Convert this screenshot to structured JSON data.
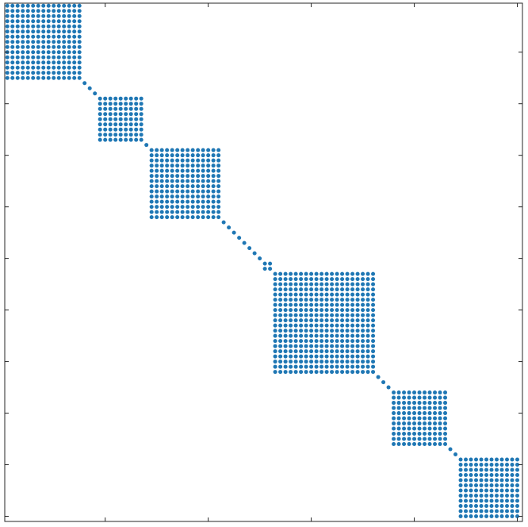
{
  "chart_data": {
    "type": "scatter",
    "title": "",
    "xlabel": "",
    "ylabel": "",
    "xlim": [
      0.5,
      101
    ],
    "ylim": [
      0.5,
      101
    ],
    "y_inverted": true,
    "grid": false,
    "tick_labels_shown": false,
    "xticks": [
      20,
      40,
      60,
      80,
      100
    ],
    "yticks": [
      10,
      20,
      30,
      40,
      50,
      60,
      70,
      80,
      90,
      100
    ],
    "marker_color": "#1f77b4",
    "blocks": [
      {
        "start": 1,
        "end": 15
      },
      {
        "start": 16,
        "end": 16
      },
      {
        "start": 17,
        "end": 17
      },
      {
        "start": 18,
        "end": 18
      },
      {
        "start": 19,
        "end": 27
      },
      {
        "start": 28,
        "end": 28
      },
      {
        "start": 29,
        "end": 42
      },
      {
        "start": 43,
        "end": 43
      },
      {
        "start": 44,
        "end": 44
      },
      {
        "start": 45,
        "end": 45
      },
      {
        "start": 46,
        "end": 46
      },
      {
        "start": 47,
        "end": 47
      },
      {
        "start": 48,
        "end": 48
      },
      {
        "start": 49,
        "end": 49
      },
      {
        "start": 50,
        "end": 50
      },
      {
        "start": 51,
        "end": 52
      },
      {
        "start": 53,
        "end": 72
      },
      {
        "start": 73,
        "end": 73
      },
      {
        "start": 74,
        "end": 74
      },
      {
        "start": 75,
        "end": 75
      },
      {
        "start": 76,
        "end": 86
      },
      {
        "start": 87,
        "end": 87
      },
      {
        "start": 88,
        "end": 88
      },
      {
        "start": 89,
        "end": 100
      }
    ]
  }
}
